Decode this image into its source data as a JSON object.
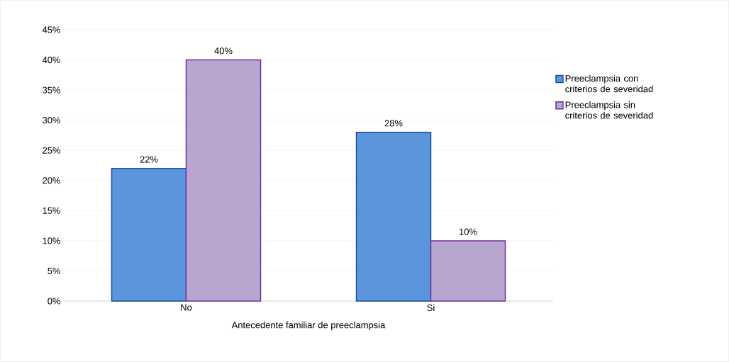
{
  "chart_data": {
    "type": "bar",
    "xlabel": "Antecedente familiar de preeclampsia",
    "categories": [
      "No",
      "Si"
    ],
    "series": [
      {
        "name": "Preeclampsia con criterios de severidad",
        "color": "#5b96dc",
        "values": [
          22,
          28
        ],
        "value_labels": [
          "22%",
          "28%"
        ]
      },
      {
        "name": "Preeclampsia sin criterios de severidad",
        "color": "#b8a6d0",
        "values": [
          40,
          10
        ],
        "value_labels": [
          "40%",
          "10%"
        ]
      }
    ],
    "ylim": [
      0,
      45
    ],
    "yticks": [
      {
        "value": 0,
        "label": "0%"
      },
      {
        "value": 5,
        "label": "5%"
      },
      {
        "value": 10,
        "label": "10%"
      },
      {
        "value": 15,
        "label": "15%"
      },
      {
        "value": 20,
        "label": "20%"
      },
      {
        "value": 25,
        "label": "25%"
      },
      {
        "value": 30,
        "label": "30%"
      },
      {
        "value": 35,
        "label": "35%"
      },
      {
        "value": 40,
        "label": "40%"
      },
      {
        "value": 45,
        "label": "45%"
      }
    ],
    "grid": "y",
    "legend": "right"
  }
}
